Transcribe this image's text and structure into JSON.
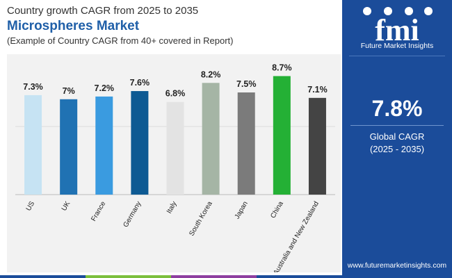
{
  "header": {
    "line1": "Country growth CAGR from 2025 to 2035",
    "line2": "Microspheres Market",
    "line3": "(Example of Country CAGR from 40+ covered in Report)"
  },
  "sidebar": {
    "logo_text": "fmi",
    "company": "Future Market Insights",
    "big_value": "7.8%",
    "big_label_1": "Global CAGR",
    "big_label_2": "(2025 - 2035)",
    "website": "www.futuremarketinsights.com"
  },
  "colors": {
    "sidebar_bg": "#1b4c9a",
    "strip": [
      "#1b4c9a",
      "#7bbf3c",
      "#8e3fa0",
      "#1b4c9a"
    ]
  },
  "chart_data": {
    "type": "bar",
    "categories": [
      "US",
      "UK",
      "France",
      "Germany",
      "Italy",
      "South Korea",
      "Japan",
      "China",
      "Australia and New Zealand"
    ],
    "values": [
      7.3,
      7.0,
      7.2,
      7.6,
      6.8,
      8.2,
      7.5,
      8.7,
      7.1
    ],
    "data_labels": [
      "7.3%",
      "7%",
      "7.2%",
      "7.6%",
      "6.8%",
      "8.2%",
      "7.5%",
      "8.7%",
      "7.1%"
    ],
    "colors": [
      "#c6e3f3",
      "#2072b3",
      "#3a9be0",
      "#0d5a93",
      "#e3e3e3",
      "#a5b5a5",
      "#7b7b7b",
      "#24b035",
      "#444444"
    ],
    "ylim": [
      0,
      10
    ],
    "grid": true,
    "legend": "none"
  }
}
